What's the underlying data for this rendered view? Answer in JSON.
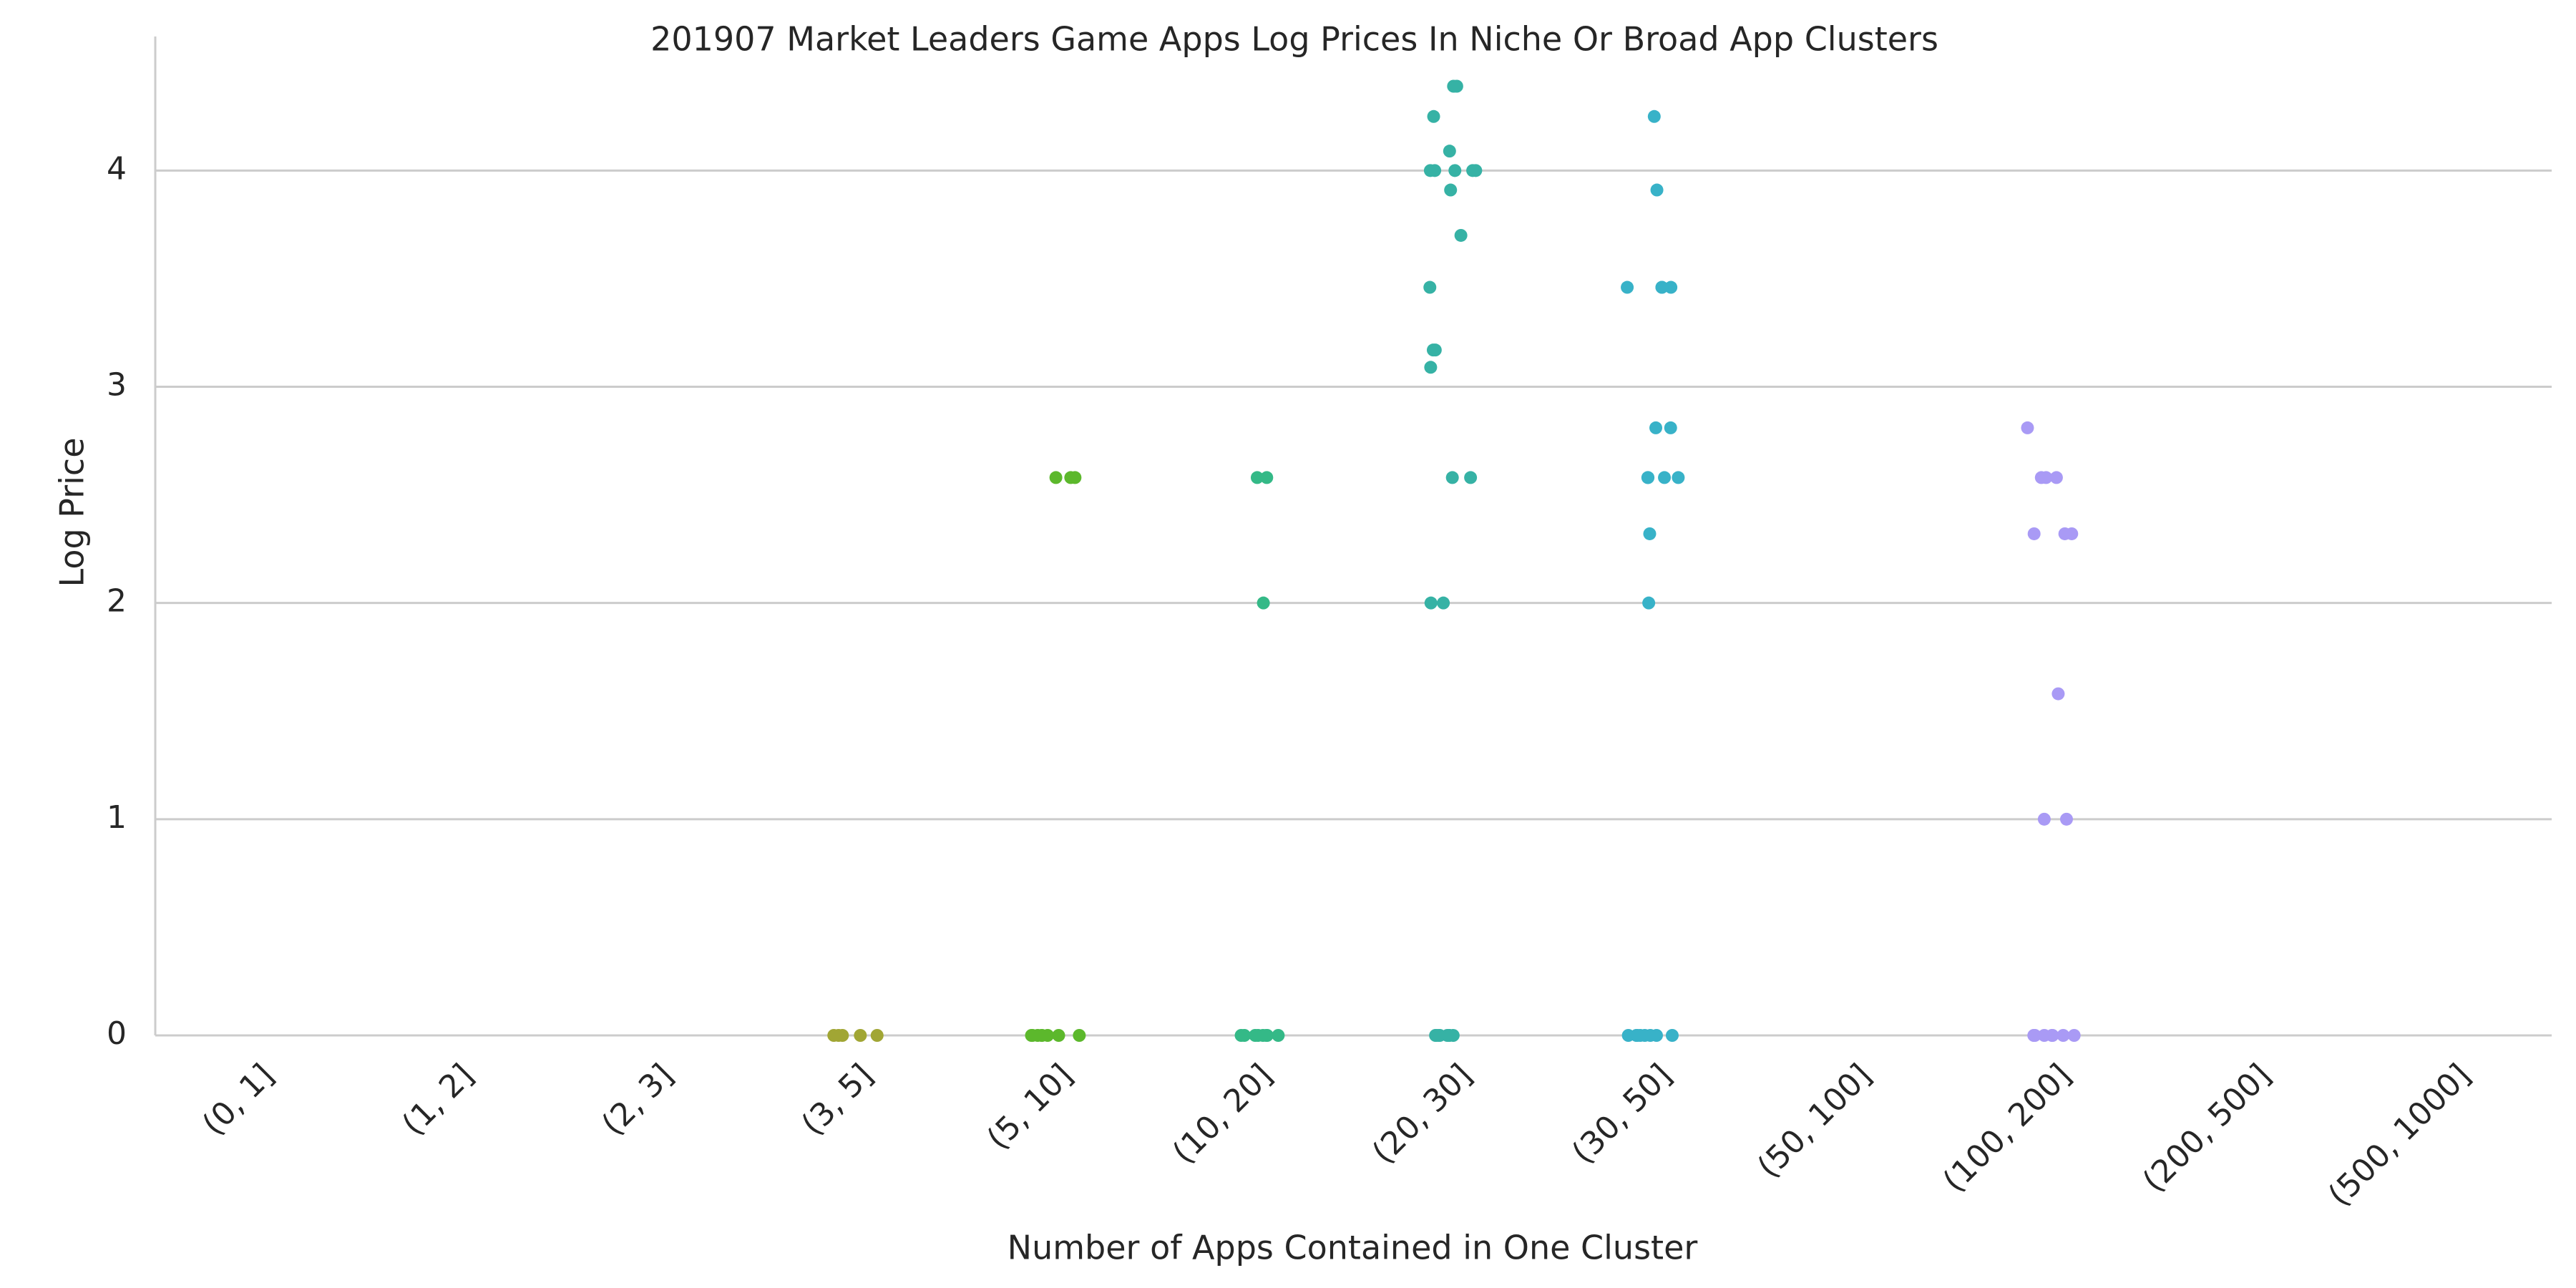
{
  "chart_data": {
    "type": "strip",
    "title": "201907 Market Leaders Game Apps Log Prices In Niche Or Broad App Clusters",
    "xlabel": "Number of Apps Contained in One Cluster",
    "ylabel": "Log Price",
    "categories": [
      "(0, 1]",
      "(1, 2]",
      "(2, 3]",
      "(3, 5]",
      "(5, 10]",
      "(10, 20]",
      "(20, 30]",
      "(30, 50]",
      "(50, 100]",
      "(100, 200]",
      "(200, 500]",
      "(500, 1000]"
    ],
    "colors": [
      "#f77189",
      "#e18b32",
      "#c29932",
      "#a1a634",
      "#5cb82c",
      "#34b987",
      "#36b2a5",
      "#38b2c8",
      "#6ea1f4",
      "#a99af5",
      "#ea73e4",
      "#f56cb4"
    ],
    "values": [
      [],
      [],
      [],
      [
        0,
        0,
        0,
        0,
        0
      ],
      [
        2.58,
        2.58,
        2.58,
        0,
        0,
        0,
        0,
        0,
        0,
        0,
        0
      ],
      [
        2.58,
        2.58,
        2.0,
        0,
        0,
        0,
        0,
        0,
        0,
        0,
        0
      ],
      [
        4.39,
        4.39,
        4.25,
        4.09,
        4.0,
        4.0,
        4.0,
        4.0,
        4.0,
        3.91,
        3.7,
        3.46,
        3.17,
        3.17,
        3.09,
        2.58,
        2.58,
        2.0,
        2.0,
        0,
        0,
        0,
        0,
        0,
        0,
        0,
        0
      ],
      [
        4.25,
        3.91,
        3.46,
        3.46,
        3.46,
        3.46,
        2.81,
        2.81,
        2.58,
        2.58,
        2.58,
        2.58,
        2.32,
        2.0,
        0,
        0,
        0,
        0,
        0,
        0,
        0,
        0
      ],
      [],
      [
        2.81,
        2.58,
        2.58,
        2.58,
        2.32,
        2.32,
        2.32,
        1.58,
        1.0,
        1.0,
        0,
        0,
        0,
        0,
        0,
        0,
        0,
        0
      ],
      [],
      []
    ],
    "ylim": [
      0,
      4.62
    ],
    "yticks": [
      0,
      1,
      2,
      3,
      4
    ],
    "grid": true
  }
}
